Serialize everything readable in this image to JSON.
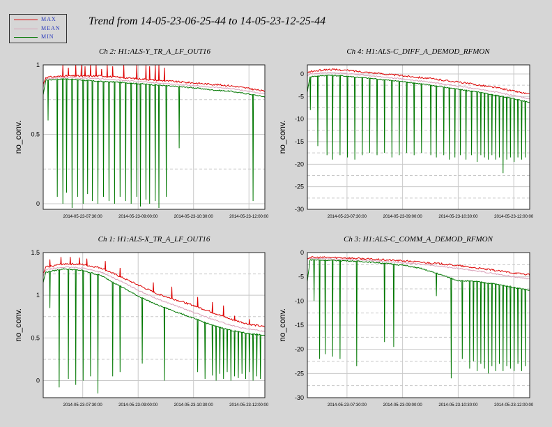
{
  "title": "Trend from 14-05-23-06-25-44 to 14-05-23-12-25-44",
  "legend": [
    {
      "label": "MAX",
      "color": "#dd0000"
    },
    {
      "label": "MEAN",
      "color": "#d8a0b8"
    },
    {
      "label": "MIN",
      "color": "#007700"
    }
  ],
  "colors": {
    "max": "#dd0000",
    "mean": "#d8a0b8",
    "min": "#007700",
    "grid": "#c8c8c8",
    "background": "#d6d6d6",
    "plot_bg": "#ffffff"
  },
  "chart_data": [
    {
      "type": "line",
      "title": "Ch 2: H1:ALS-Y_TR_A_LF_OUT16",
      "ylabel": "no_conv.",
      "xlabel": "",
      "xticks": [
        "2014-05-23-07:30:00",
        "2014-05-23-09:00:00",
        "2014-05-23-10:30:00",
        "2014-05-23-12:00:00"
      ],
      "xrange_hours": [
        6.43,
        12.43
      ],
      "xtick_hours": [
        7.5,
        9.0,
        10.5,
        12.0
      ],
      "ylim": [
        -0.04,
        1.0
      ],
      "yticks": [
        0,
        0.5,
        1
      ],
      "ytick_labels": [
        "0",
        "0.5",
        "1"
      ],
      "grid": true,
      "series": [
        {
          "name": "MAX",
          "x": [
            6.43,
            6.5,
            7.0,
            7.5,
            8.0,
            8.5,
            9.0,
            9.5,
            10.0,
            10.5,
            11.0,
            11.5,
            12.0,
            12.43
          ],
          "y": [
            0.86,
            0.91,
            0.92,
            0.92,
            0.92,
            0.91,
            0.9,
            0.89,
            0.88,
            0.87,
            0.86,
            0.85,
            0.83,
            0.81
          ]
        },
        {
          "name": "MEAN",
          "x": [
            6.43,
            6.5,
            7.0,
            7.5,
            8.0,
            8.5,
            9.0,
            9.5,
            10.0,
            10.5,
            11.0,
            11.5,
            12.0,
            12.43
          ],
          "y": [
            0.84,
            0.9,
            0.91,
            0.905,
            0.9,
            0.89,
            0.88,
            0.87,
            0.86,
            0.85,
            0.84,
            0.83,
            0.81,
            0.79
          ]
        },
        {
          "name": "MIN",
          "x": [
            6.43,
            6.5,
            7.0,
            7.5,
            8.0,
            8.5,
            9.0,
            9.5,
            10.0,
            10.5,
            11.0,
            11.5,
            12.0,
            12.43
          ],
          "y": [
            0.78,
            0.89,
            0.9,
            0.89,
            0.88,
            0.875,
            0.865,
            0.855,
            0.845,
            0.835,
            0.82,
            0.81,
            0.79,
            0.77
          ]
        }
      ],
      "max_spike_hours": [
        6.95,
        7.1,
        7.3,
        7.45,
        7.55,
        7.7,
        7.85,
        8.0,
        8.15,
        8.3,
        8.6,
        8.95,
        9.2,
        9.3,
        9.45,
        9.55,
        9.7
      ],
      "max_spike_values": [
        1.0,
        0.98,
        1.0,
        1.0,
        0.99,
        1.0,
        1.0,
        0.97,
        1.0,
        0.99,
        1.0,
        1.0,
        1.0,
        0.99,
        1.0,
        1.0,
        0.98
      ],
      "min_dip_hours": [
        6.55,
        6.8,
        6.95,
        7.05,
        7.2,
        7.35,
        7.5,
        7.62,
        7.75,
        7.9,
        8.05,
        8.2,
        8.35,
        8.5,
        8.65,
        8.8,
        8.95,
        9.05,
        9.2,
        9.3,
        9.45,
        9.55,
        9.75,
        10.1,
        12.1
      ],
      "min_dip_values": [
        0.6,
        0.05,
        0.0,
        0.08,
        -0.03,
        0.05,
        0.0,
        0.07,
        0.02,
        0.0,
        0.05,
        0.02,
        0.0,
        0.05,
        0.02,
        0.0,
        0.05,
        -0.02,
        0.03,
        0.0,
        0.02,
        -0.03,
        0.05,
        0.4,
        0.02
      ]
    },
    {
      "type": "line",
      "title": "Ch 4: H1:ALS-C_DIFF_A_DEMOD_RFMON",
      "ylabel": "no_conv.",
      "xlabel": "",
      "xticks": [
        "2014-05-23-07:30:00",
        "2014-05-23-09:00:00",
        "2014-05-23-10:30:00",
        "2014-05-23-12:00:00"
      ],
      "xrange_hours": [
        6.43,
        12.43
      ],
      "xtick_hours": [
        7.5,
        9.0,
        10.5,
        12.0
      ],
      "ylim": [
        -30,
        2
      ],
      "yticks": [
        0,
        -5,
        -10,
        -15,
        -20,
        -25,
        -30
      ],
      "ytick_labels": [
        "0",
        "-5",
        "-10",
        "-15",
        "-20",
        "-25",
        "-30"
      ],
      "grid": true,
      "series": [
        {
          "name": "MAX",
          "x": [
            6.43,
            6.5,
            7.0,
            7.5,
            8.0,
            8.5,
            9.0,
            9.5,
            10.0,
            10.5,
            11.0,
            11.5,
            12.0,
            12.43
          ],
          "y": [
            0.2,
            0.5,
            1.0,
            0.8,
            0.4,
            0.0,
            -0.4,
            -0.8,
            -1.3,
            -1.8,
            -2.4,
            -3.0,
            -3.8,
            -4.5
          ]
        },
        {
          "name": "MEAN",
          "x": [
            6.43,
            6.5,
            7.0,
            7.5,
            8.0,
            8.5,
            9.0,
            9.5,
            10.0,
            10.5,
            11.0,
            11.5,
            12.0,
            12.43
          ],
          "y": [
            -0.5,
            0.0,
            0.3,
            0.1,
            -0.3,
            -0.7,
            -1.1,
            -1.6,
            -2.1,
            -2.7,
            -3.3,
            -4.0,
            -4.8,
            -5.5
          ]
        },
        {
          "name": "MIN",
          "x": [
            6.43,
            6.5,
            7.0,
            7.5,
            8.0,
            8.5,
            9.0,
            9.5,
            10.0,
            10.5,
            11.0,
            11.5,
            12.0,
            12.43
          ],
          "y": [
            -4.0,
            -0.6,
            -0.3,
            -0.5,
            -0.9,
            -1.3,
            -1.7,
            -2.2,
            -2.8,
            -3.4,
            -4.0,
            -4.7,
            -5.5,
            -6.3
          ]
        }
      ],
      "min_dip_hours": [
        6.5,
        6.7,
        6.95,
        7.1,
        7.3,
        7.5,
        7.7,
        7.9,
        8.1,
        8.3,
        8.5,
        8.7,
        8.9,
        9.1,
        9.3,
        9.5,
        9.75,
        9.9,
        10.1,
        10.25,
        10.4,
        10.55,
        10.7,
        10.85,
        11.0,
        11.1,
        11.2,
        11.3,
        11.4,
        11.5,
        11.6,
        11.7,
        11.8,
        11.9,
        12.0,
        12.1,
        12.2,
        12.3
      ],
      "min_dip_values": [
        -8.0,
        -16.0,
        -18.0,
        -19.0,
        -18.0,
        -18.5,
        -19.0,
        -18.0,
        -17.5,
        -18.0,
        -17.5,
        -18.5,
        -18.0,
        -17.5,
        -18.0,
        -17.5,
        -18.0,
        -18.5,
        -18.0,
        -19.0,
        -18.5,
        -18.0,
        -19.0,
        -18.0,
        -19.5,
        -18.0,
        -18.5,
        -19.0,
        -18.0,
        -19.0,
        -18.5,
        -22.0,
        -19.0,
        -18.5,
        -19.5,
        -18.5,
        -19.0,
        -18.5
      ]
    },
    {
      "type": "line",
      "title": "Ch 1: H1:ALS-X_TR_A_LF_OUT16",
      "ylabel": "no_conv.",
      "xlabel": "",
      "xticks": [
        "2014-05-23-07:30:00",
        "2014-05-23-09:00:00",
        "2014-05-23-10:30:00",
        "2014-05-23-12:00:00"
      ],
      "xrange_hours": [
        6.43,
        12.43
      ],
      "xtick_hours": [
        7.5,
        9.0,
        10.5,
        12.0
      ],
      "ylim": [
        -0.2,
        1.5
      ],
      "yticks": [
        0,
        0.5,
        1,
        1.5
      ],
      "ytick_labels": [
        "0",
        "0.5",
        "1",
        "1.5"
      ],
      "grid": true,
      "series": [
        {
          "name": "MAX",
          "x": [
            6.43,
            6.5,
            7.0,
            7.5,
            8.0,
            8.5,
            9.0,
            9.5,
            10.0,
            10.5,
            11.0,
            11.5,
            12.0,
            12.43
          ],
          "y": [
            1.25,
            1.33,
            1.37,
            1.36,
            1.32,
            1.22,
            1.12,
            1.02,
            0.95,
            0.88,
            0.8,
            0.72,
            0.66,
            0.63
          ]
        },
        {
          "name": "MEAN",
          "x": [
            6.43,
            6.5,
            7.0,
            7.5,
            8.0,
            8.5,
            9.0,
            9.5,
            10.0,
            10.5,
            11.0,
            11.5,
            12.0,
            12.43
          ],
          "y": [
            1.22,
            1.3,
            1.33,
            1.32,
            1.27,
            1.17,
            1.06,
            0.96,
            0.88,
            0.8,
            0.72,
            0.65,
            0.6,
            0.58
          ]
        },
        {
          "name": "MIN",
          "x": [
            6.43,
            6.5,
            7.0,
            7.5,
            8.0,
            8.5,
            9.0,
            9.5,
            10.0,
            10.5,
            11.0,
            11.5,
            12.0,
            12.43
          ],
          "y": [
            1.15,
            1.27,
            1.31,
            1.29,
            1.23,
            1.11,
            0.99,
            0.89,
            0.81,
            0.73,
            0.65,
            0.59,
            0.55,
            0.53
          ]
        }
      ],
      "max_spike_hours": [
        6.6,
        6.9,
        7.15,
        7.4,
        7.6,
        8.1,
        8.5,
        9.4,
        9.9,
        10.6,
        11.0,
        11.3,
        11.6,
        12.0
      ],
      "max_spike_values": [
        1.42,
        1.45,
        1.45,
        1.44,
        1.43,
        1.4,
        1.32,
        1.15,
        1.1,
        0.98,
        0.92,
        0.88,
        0.76,
        0.72
      ],
      "min_dip_hours": [
        6.6,
        6.85,
        7.1,
        7.3,
        7.5,
        7.7,
        7.9,
        8.3,
        8.5,
        9.1,
        9.7,
        10.6,
        10.8,
        11.0,
        11.1,
        11.2,
        11.3,
        11.4,
        11.5,
        11.6,
        11.7,
        11.8,
        11.9,
        12.0,
        12.1,
        12.2,
        12.3
      ],
      "min_dip_values": [
        0.85,
        -0.08,
        0.02,
        -0.05,
        0.0,
        0.05,
        -0.15,
        0.05,
        0.1,
        0.2,
        0.0,
        0.1,
        0.02,
        0.06,
        0.0,
        0.08,
        0.02,
        0.1,
        0.0,
        0.05,
        0.03,
        0.08,
        0.02,
        0.1,
        0.0,
        0.05,
        0.02
      ]
    },
    {
      "type": "line",
      "title": "Ch 3: H1:ALS-C_COMM_A_DEMOD_RFMON",
      "ylabel": "no_conv.",
      "xlabel": "",
      "xticks": [
        "2014-05-23-07:30:00",
        "2014-05-23-09:00:00",
        "2014-05-23-10:30:00",
        "2014-05-23-12:00:00"
      ],
      "xrange_hours": [
        6.43,
        12.43
      ],
      "xtick_hours": [
        7.5,
        9.0,
        10.5,
        12.0
      ],
      "ylim": [
        -30,
        0
      ],
      "yticks": [
        0,
        -5,
        -10,
        -15,
        -20,
        -25,
        -30
      ],
      "ytick_labels": [
        "0",
        "-5",
        "-10",
        "-15",
        "-20",
        "-25",
        "-30"
      ],
      "grid": true,
      "series": [
        {
          "name": "MAX",
          "x": [
            6.43,
            6.5,
            7.0,
            7.5,
            8.0,
            8.5,
            9.0,
            9.5,
            10.0,
            10.5,
            11.0,
            11.5,
            12.0,
            12.43
          ],
          "y": [
            -1.2,
            -1.0,
            -1.0,
            -1.1,
            -1.3,
            -1.5,
            -1.7,
            -2.0,
            -2.3,
            -2.7,
            -3.2,
            -3.7,
            -4.2,
            -4.6
          ]
        },
        {
          "name": "MEAN",
          "x": [
            6.43,
            6.5,
            7.0,
            7.5,
            8.0,
            8.5,
            9.0,
            9.5,
            10.0,
            10.5,
            11.0,
            11.5,
            12.0,
            12.43
          ],
          "y": [
            -1.4,
            -1.2,
            -1.3,
            -1.4,
            -1.6,
            -1.8,
            -2.1,
            -2.4,
            -2.8,
            -3.3,
            -3.8,
            -4.4,
            -5.0,
            -5.4
          ]
        },
        {
          "name": "MIN",
          "x": [
            6.43,
            6.5,
            7.0,
            7.5,
            8.0,
            8.5,
            9.0,
            9.5,
            10.0,
            10.5,
            11.0,
            11.5,
            12.0,
            12.43
          ],
          "y": [
            -6.0,
            -1.5,
            -1.6,
            -1.7,
            -1.9,
            -2.2,
            -2.6,
            -3.3,
            -4.5,
            -5.8,
            -6.0,
            -6.5,
            -7.2,
            -7.8
          ]
        }
      ],
      "min_dip_hours": [
        6.6,
        6.75,
        6.9,
        7.1,
        7.3,
        7.75,
        8.5,
        8.75,
        9.9,
        10.3,
        10.6,
        10.8,
        10.9,
        11.0,
        11.1,
        11.2,
        11.3,
        11.4,
        11.5,
        11.6,
        11.7,
        11.8,
        11.9,
        12.0,
        12.1,
        12.2,
        12.3
      ],
      "min_dip_values": [
        -10.0,
        -22.0,
        -21.0,
        -21.5,
        -22.0,
        -23.5,
        -18.5,
        -19.5,
        -9.0,
        -26.0,
        -22.0,
        -24.0,
        -22.5,
        -24.5,
        -23.0,
        -24.0,
        -25.0,
        -23.5,
        -24.5,
        -23.0,
        -24.5,
        -23.5,
        -24.0,
        -24.5,
        -23.0,
        -24.5,
        -23.5
      ]
    }
  ]
}
